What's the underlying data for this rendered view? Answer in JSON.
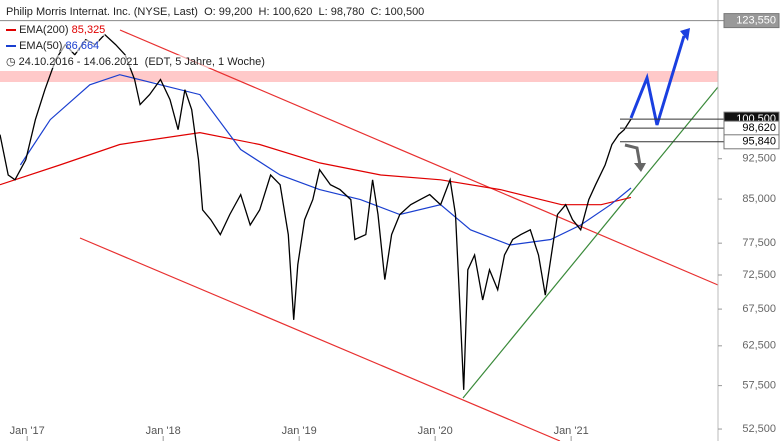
{
  "header": {
    "title": "Philip Morris Internat. Inc. (NYSE, Last)",
    "ohlc": [
      "O: 99,200",
      "H: 100,620",
      "L: 98,780",
      "C: 100,500"
    ],
    "range": "24.10.2016 - 14.06.2021",
    "note": "(EDT, 5 Jahre, 1 Woche)"
  },
  "chart_data": {
    "type": "line",
    "log_scale": true,
    "grid": false,
    "xlim": [
      2016.8,
      2022.08
    ],
    "xticks": [
      {
        "value": 2017,
        "label": "Jan '17"
      },
      {
        "value": 2018,
        "label": "Jan '18"
      },
      {
        "value": 2019,
        "label": "Jan '19"
      },
      {
        "value": 2020,
        "label": "Jan '20"
      },
      {
        "value": 2021,
        "label": "Jan '21"
      }
    ],
    "ylim": [
      51200,
      129000
    ],
    "yticks": [
      {
        "value": 52500,
        "label": "52,500"
      },
      {
        "value": 57500,
        "label": "57,500"
      },
      {
        "value": 62500,
        "label": "62,500"
      },
      {
        "value": 67500,
        "label": "67,500"
      },
      {
        "value": 72500,
        "label": "72,500"
      },
      {
        "value": 77500,
        "label": "77,500"
      },
      {
        "value": 85000,
        "label": "85,000"
      },
      {
        "value": 92500,
        "label": "92,500"
      }
    ],
    "price": {
      "color": "#000000",
      "x": [
        2016.8,
        2016.86,
        2016.91,
        2016.99,
        2017.06,
        2017.13,
        2017.21,
        2017.28,
        2017.35,
        2017.43,
        2017.5,
        2017.57,
        2017.65,
        2017.72,
        2017.79,
        2017.83,
        2017.9,
        2017.98,
        2018.05,
        2018.11,
        2018.16,
        2018.21,
        2018.26,
        2018.29,
        2018.35,
        2018.42,
        2018.49,
        2018.57,
        2018.64,
        2018.71,
        2018.79,
        2018.86,
        2018.92,
        2018.96,
        2018.99,
        2019.04,
        2019.1,
        2019.15,
        2019.23,
        2019.3,
        2019.38,
        2019.41,
        2019.49,
        2019.54,
        2019.58,
        2019.63,
        2019.68,
        2019.74,
        2019.82,
        2019.89,
        2019.96,
        2020.04,
        2020.11,
        2020.15,
        2020.18,
        2020.21,
        2020.24,
        2020.29,
        2020.35,
        2020.4,
        2020.46,
        2020.51,
        2020.57,
        2020.63,
        2020.7,
        2020.76,
        2020.81,
        2020.86,
        2020.9,
        2020.96,
        2021.01,
        2021.07,
        2021.13,
        2021.18,
        2021.25,
        2021.3,
        2021.35,
        2021.39,
        2021.44
      ],
      "values": [
        97300,
        89400,
        88500,
        92300,
        100400,
        106900,
        113900,
        117500,
        115000,
        118700,
        117500,
        120000,
        117500,
        115000,
        109200,
        103600,
        105800,
        109200,
        104700,
        98300,
        106900,
        102500,
        92300,
        83100,
        81400,
        78900,
        82300,
        85800,
        80500,
        83100,
        89400,
        87600,
        78900,
        66000,
        74100,
        81400,
        84900,
        90400,
        87600,
        86700,
        84900,
        78100,
        78900,
        88500,
        82300,
        71800,
        78900,
        82300,
        84000,
        84900,
        85800,
        84000,
        88500,
        82300,
        68800,
        57000,
        73300,
        75600,
        68800,
        73300,
        70300,
        75600,
        78100,
        78900,
        79700,
        75600,
        69500,
        76400,
        82300,
        84000,
        81400,
        79700,
        84900,
        87600,
        91300,
        95300,
        97300,
        98300,
        100500
      ]
    },
    "series": [
      {
        "name": "EMA(200)",
        "last_label": "85,325",
        "color": "#e00000",
        "x": [
          2016.8,
          2017.24,
          2017.68,
          2018.27,
          2018.71,
          2019.15,
          2019.6,
          2020.04,
          2020.48,
          2020.93,
          2021.22,
          2021.44
        ],
        "values": [
          87600,
          91300,
          95300,
          97700,
          95300,
          91700,
          89400,
          88500,
          86700,
          84000,
          84000,
          85300
        ]
      },
      {
        "name": "EMA(50)",
        "last_label": "86,664",
        "color": "#1a3fd0",
        "x": [
          2016.95,
          2017.17,
          2017.46,
          2017.68,
          2017.98,
          2018.27,
          2018.57,
          2018.86,
          2019.15,
          2019.45,
          2019.74,
          2020.04,
          2020.26,
          2020.55,
          2020.85,
          2021.07,
          2021.29,
          2021.44
        ],
        "values": [
          91300,
          100400,
          108000,
          110300,
          108000,
          105800,
          94300,
          89400,
          86700,
          84900,
          82300,
          84000,
          79700,
          77200,
          78100,
          80500,
          84000,
          87000
        ]
      }
    ],
    "levels": [
      {
        "value": 123550,
        "label": "123,550"
      },
      {
        "value": 100500,
        "label": "100,500"
      },
      {
        "value": 98620,
        "label": "98,620"
      },
      {
        "value": 95840,
        "label": "95,840"
      }
    ]
  }
}
